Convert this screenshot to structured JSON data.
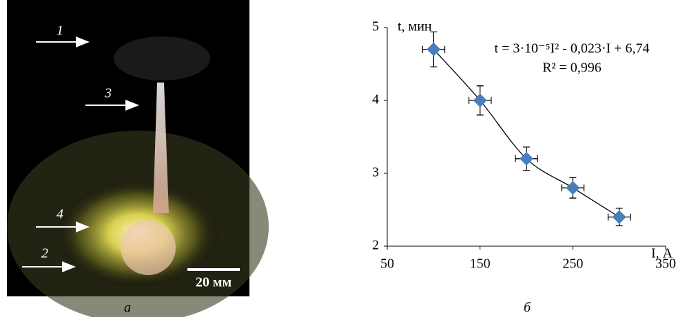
{
  "photo": {
    "labels": [
      "1",
      "3",
      "4",
      "2"
    ],
    "scale": "20 мм",
    "caption": "а"
  },
  "chart_data": {
    "type": "scatter",
    "caption": "б",
    "y_label": "t, мин",
    "x_label": "I, А",
    "annotations": [
      "t = 3·10⁻⁵I² - 0,023·I + 6,74",
      "R² = 0,996"
    ],
    "x": [
      100,
      150,
      200,
      250,
      300
    ],
    "series": [
      {
        "color": "#4a7ebb",
        "values": [
          4.7,
          4.0,
          3.2,
          2.8,
          2.4
        ],
        "errors": [
          0.24,
          0.2,
          0.16,
          0.14,
          0.12
        ],
        "x_errors": [
          12,
          12,
          12,
          12,
          12
        ]
      }
    ],
    "xlim": [
      50,
      350
    ],
    "xticks": [
      50,
      150,
      250,
      350
    ],
    "ylim": [
      2,
      5
    ],
    "yticks": [
      2,
      3,
      4,
      5
    ],
    "trendline": true
  }
}
